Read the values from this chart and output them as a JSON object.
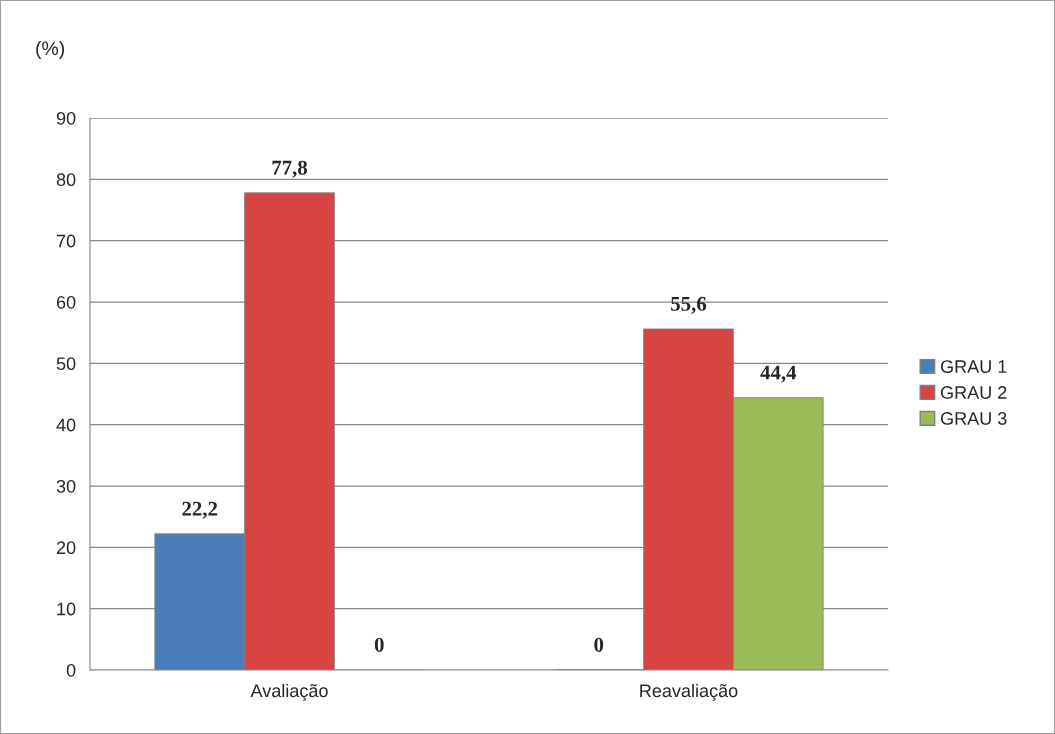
{
  "chart_data": {
    "type": "bar",
    "ylabel": "(%)",
    "categories": [
      "Avaliação",
      "Reavaliação"
    ],
    "series": [
      {
        "name": "GRAU 1",
        "color": "#4a7ebb",
        "values": [
          22.2,
          0
        ],
        "value_labels": [
          "22,2",
          "0"
        ]
      },
      {
        "name": "GRAU 2",
        "color": "#d64541",
        "values": [
          77.8,
          55.6
        ],
        "value_labels": [
          "77,8",
          "55,6"
        ]
      },
      {
        "name": "GRAU 3",
        "color": "#9bbb59",
        "values": [
          0,
          44.4
        ],
        "value_labels": [
          "0",
          "44,4"
        ]
      }
    ],
    "ylim": [
      0,
      90
    ],
    "yticks": [
      0,
      10,
      20,
      30,
      40,
      50,
      60,
      70,
      80,
      90
    ],
    "grid": "y",
    "legend": "right"
  }
}
